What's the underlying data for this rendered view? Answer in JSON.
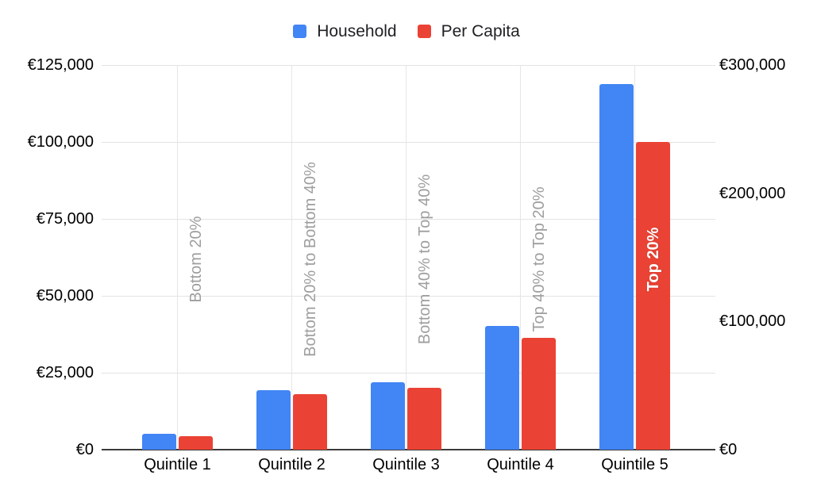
{
  "chart_data": {
    "type": "bar",
    "title": "",
    "categories": [
      "Quintile 1",
      "Quintile 2",
      "Quintile 3",
      "Quintile 4",
      "Quintile 5"
    ],
    "series": [
      {
        "name": "Household",
        "color": "#4285F4",
        "axis": "right",
        "values": [
          12500,
          46500,
          52500,
          96500,
          285000
        ]
      },
      {
        "name": "Per Capita",
        "color": "#EA4335",
        "axis": "left",
        "values": [
          4500,
          18000,
          20000,
          36300,
          100000
        ]
      }
    ],
    "annotations": [
      {
        "text": "Bottom 20%",
        "style": "gray"
      },
      {
        "text": "Bottom 20% to Bottom 40%",
        "style": "gray"
      },
      {
        "text": "Bottom 40% to Top 40%",
        "style": "gray"
      },
      {
        "text": "Top 40% to Top 20%",
        "style": "gray"
      },
      {
        "text": "Top 20%",
        "style": "white"
      }
    ],
    "left_axis": {
      "min": 0,
      "max": 125000,
      "ticks": [
        {
          "label": "€0",
          "value": 0
        },
        {
          "label": "€25,000",
          "value": 25000
        },
        {
          "label": "€50,000",
          "value": 50000
        },
        {
          "label": "€75,000",
          "value": 75000
        },
        {
          "label": "€100,000",
          "value": 100000
        },
        {
          "label": "€125,000",
          "value": 125000
        }
      ]
    },
    "right_axis": {
      "min": 0,
      "max": 300000,
      "ticks": [
        {
          "label": "€0",
          "value": 0
        },
        {
          "label": "€100,000",
          "value": 100000
        },
        {
          "label": "€200,000",
          "value": 200000
        },
        {
          "label": "€300,000",
          "value": 300000
        }
      ]
    },
    "grid": true,
    "legend_position": "top",
    "currency": "EUR"
  }
}
